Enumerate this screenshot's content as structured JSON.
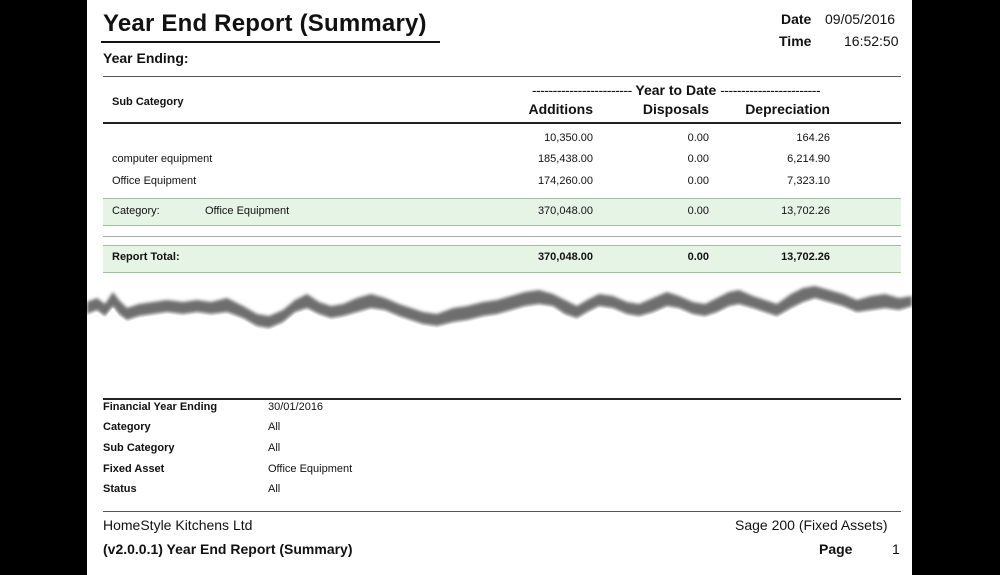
{
  "report": {
    "title": "Year End Report (Summary)",
    "year_ending_label": "Year Ending:",
    "date_label": "Date",
    "date_value": "09/05/2016",
    "time_label": "Time",
    "time_value": "16:52:50"
  },
  "table": {
    "sub_category_header": "Sub Category",
    "ytd_dashes_left": "------------------------",
    "ytd_label": "Year to Date",
    "ytd_dashes_right": "------------------------",
    "columns": [
      "Additions",
      "Disposals",
      "Depreciation"
    ],
    "rows": [
      {
        "sub_category": "",
        "additions": "10,350.00",
        "disposals": "0.00",
        "depreciation": "164.26"
      },
      {
        "sub_category": "computer equipment",
        "additions": "185,438.00",
        "disposals": "0.00",
        "depreciation": "6,214.90"
      },
      {
        "sub_category": "Office Equipment",
        "additions": "174,260.00",
        "disposals": "0.00",
        "depreciation": "7,323.10"
      }
    ],
    "category_total": {
      "label": "Category:",
      "name": "Office Equipment",
      "additions": "370,048.00",
      "disposals": "0.00",
      "depreciation": "13,702.26"
    },
    "report_total": {
      "label": "Report Total:",
      "additions": "370,048.00",
      "disposals": "0.00",
      "depreciation": "13,702.26"
    }
  },
  "criteria": [
    {
      "label": "Financial Year Ending",
      "value": "30/01/2016"
    },
    {
      "label": "Category",
      "value": "All"
    },
    {
      "label": "Sub Category",
      "value": "All"
    },
    {
      "label": "Fixed Asset",
      "value": "Office Equipment"
    },
    {
      "label": "Status",
      "value": "All"
    }
  ],
  "footer": {
    "company": "HomeStyle Kitchens Ltd",
    "product": "Sage 200 (Fixed Assets)",
    "version_title": "(v2.0.0.1)  Year End Report (Summary)",
    "page_label": "Page",
    "page_number": "1"
  }
}
